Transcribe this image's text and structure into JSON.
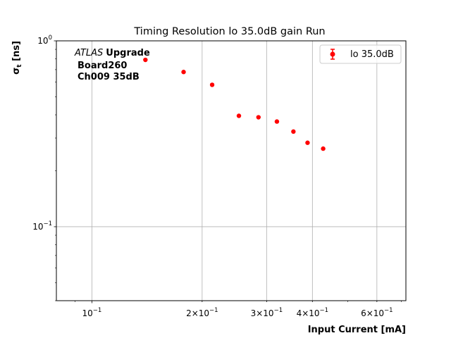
{
  "chart_data": {
    "type": "scatter",
    "title": "Timing Resolution lo 35.0dB gain Run",
    "xlabel": "Input Current [mA]",
    "ylabel_main": "σ",
    "ylabel_sub": "t",
    "ylabel_unit": " [ns]",
    "x_scale": "log",
    "y_scale": "log",
    "xlim": [
      0.08,
      0.72
    ],
    "ylim": [
      0.04,
      1.0
    ],
    "grid": true,
    "legend_position": "top-right",
    "x_ticks": [
      {
        "value": 0.1,
        "mantissa": "",
        "exp": "−1"
      },
      {
        "value": 0.2,
        "mantissa": "2",
        "exp": "−1"
      },
      {
        "value": 0.3,
        "mantissa": "3",
        "exp": "−1"
      },
      {
        "value": 0.4,
        "mantissa": "4",
        "exp": "−1"
      },
      {
        "value": 0.6,
        "mantissa": "6",
        "exp": "−1"
      }
    ],
    "y_ticks": [
      {
        "value": 0.1,
        "exp": "−1"
      },
      {
        "value": 1.0,
        "exp": "0"
      }
    ],
    "annotation": {
      "italic": "ATLAS",
      "bold": "Upgrade",
      "line2": "Board260",
      "line3": "Ch009 35dB"
    },
    "series": [
      {
        "name": "lo 35.0dB",
        "color": "#ff0000",
        "x": [
          0.14,
          0.178,
          0.213,
          0.252,
          0.285,
          0.32,
          0.355,
          0.388,
          0.428
        ],
        "y": [
          0.79,
          0.68,
          0.58,
          0.395,
          0.388,
          0.368,
          0.325,
          0.283,
          0.263
        ]
      }
    ]
  }
}
